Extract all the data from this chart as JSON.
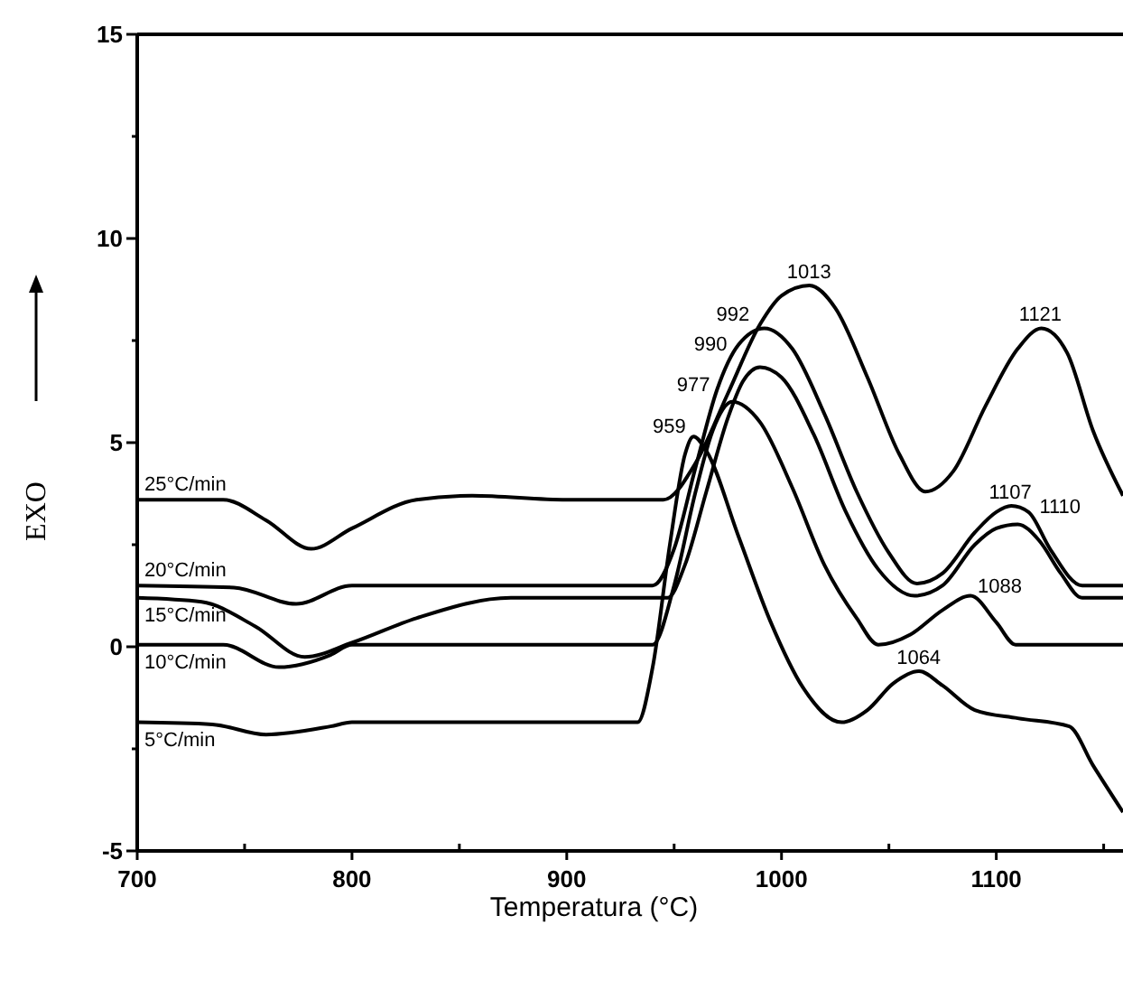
{
  "chart_data": {
    "type": "line",
    "xlabel": "Temperatura (°C)",
    "ylabel": "EXO",
    "xlim": [
      700,
      1159
    ],
    "ylim": [
      -5,
      15
    ],
    "xticks": [
      700,
      {
        "value": 750,
        "label": null
      },
      800,
      {
        "value": 850,
        "label": null
      },
      900,
      {
        "value": 950,
        "label": null
      },
      1000,
      {
        "value": 1050,
        "label": null
      },
      1100,
      {
        "value": 1150,
        "label": null
      }
    ],
    "yticks": [
      -5,
      {
        "value": -2.5,
        "label": null
      },
      0,
      {
        "value": 2.5,
        "label": null
      },
      5,
      {
        "value": 7.5,
        "label": null
      },
      10,
      {
        "value": 12.5,
        "label": null
      },
      15
    ],
    "grid": false,
    "marker": "none",
    "line_style": "solid",
    "series": [
      {
        "name": "25°C/min",
        "color": "#000000",
        "x": [
          700,
          740,
          760,
          781,
          800,
          830,
          856,
          900,
          945,
          960,
          975,
          990,
          1000,
          1013,
          1025,
          1040,
          1055,
          1067,
          1080,
          1095,
          1110,
          1121,
          1133,
          1145,
          1159
        ],
        "values": [
          3.6,
          3.6,
          3.1,
          2.4,
          2.9,
          3.6,
          3.7,
          3.6,
          3.6,
          4.5,
          6.2,
          7.9,
          8.6,
          8.85,
          8.3,
          6.6,
          4.7,
          3.8,
          4.3,
          5.9,
          7.3,
          7.8,
          7.2,
          5.3,
          3.7
        ]
      },
      {
        "name": "20°C/min",
        "color": "#000000",
        "x": [
          700,
          745,
          774,
          800,
          900,
          940,
          950,
          960,
          970,
          980,
          992,
          1005,
          1020,
          1035,
          1050,
          1063,
          1075,
          1090,
          1100,
          1107,
          1115,
          1125,
          1140,
          1159
        ],
        "values": [
          1.5,
          1.45,
          1.05,
          1.5,
          1.5,
          1.5,
          2.4,
          4.4,
          6.3,
          7.4,
          7.8,
          7.3,
          5.7,
          3.8,
          2.3,
          1.55,
          1.8,
          2.8,
          3.3,
          3.45,
          3.3,
          2.4,
          1.5,
          1.5
        ]
      },
      {
        "name": "15°C/min",
        "color": "#000000",
        "x": [
          700,
          730,
          755,
          778,
          800,
          830,
          874,
          900,
          947,
          955,
          965,
          975,
          982,
          990,
          1000,
          1015,
          1030,
          1045,
          1062,
          1075,
          1090,
          1100,
          1110,
          1120,
          1130,
          1140,
          1159
        ],
        "values": [
          1.2,
          1.1,
          0.5,
          -0.25,
          0.1,
          0.7,
          1.2,
          1.2,
          1.2,
          2.0,
          3.8,
          5.6,
          6.5,
          6.85,
          6.6,
          5.2,
          3.3,
          1.9,
          1.25,
          1.5,
          2.5,
          2.9,
          3.0,
          2.6,
          1.8,
          1.2,
          1.2
        ]
      },
      {
        "name": "10°C/min",
        "color": "#000000",
        "x": [
          700,
          740,
          766,
          790,
          800,
          900,
          940,
          950,
          960,
          968,
          977,
          990,
          1005,
          1020,
          1035,
          1045,
          1060,
          1075,
          1088,
          1100,
          1109,
          1130,
          1159
        ],
        "values": [
          0.05,
          0.05,
          -0.5,
          -0.2,
          0.05,
          0.05,
          0.05,
          1.5,
          3.8,
          5.3,
          6.0,
          5.5,
          3.9,
          2.0,
          0.7,
          0.05,
          0.3,
          0.9,
          1.25,
          0.6,
          0.05,
          0.05,
          0.05
        ]
      },
      {
        "name": "5°C/min",
        "color": "#000000",
        "x": [
          700,
          735,
          760,
          790,
          800,
          900,
          933,
          940,
          948,
          955,
          959,
          965,
          980,
          995,
          1010,
          1028,
          1040,
          1052,
          1064,
          1075,
          1090,
          1110,
          1134,
          1145,
          1159
        ],
        "values": [
          -1.85,
          -1.9,
          -2.15,
          -1.95,
          -1.85,
          -1.85,
          -1.85,
          -0.5,
          2.5,
          4.7,
          5.15,
          4.8,
          2.7,
          0.6,
          -1.0,
          -1.85,
          -1.55,
          -0.9,
          -0.6,
          -0.95,
          -1.55,
          -1.75,
          -1.95,
          -2.9,
          -4.05
        ]
      }
    ],
    "annotations": [
      {
        "text": "1013",
        "x": 1013,
        "y": 8.85
      },
      {
        "text": "1121",
        "x": 1121,
        "y": 7.8
      },
      {
        "text": "992",
        "x": 992,
        "y": 7.8
      },
      {
        "text": "990",
        "x": 990,
        "y": 6.85
      },
      {
        "text": "977",
        "x": 977,
        "y": 6.0
      },
      {
        "text": "959",
        "x": 959,
        "y": 5.15
      },
      {
        "text": "1107",
        "x": 1107,
        "y": 3.45
      },
      {
        "text": "1110",
        "x": 1110,
        "y": 3.0
      },
      {
        "text": "1088",
        "x": 1088,
        "y": 1.25
      },
      {
        "text": "1064",
        "x": 1064,
        "y": -0.6
      }
    ]
  }
}
